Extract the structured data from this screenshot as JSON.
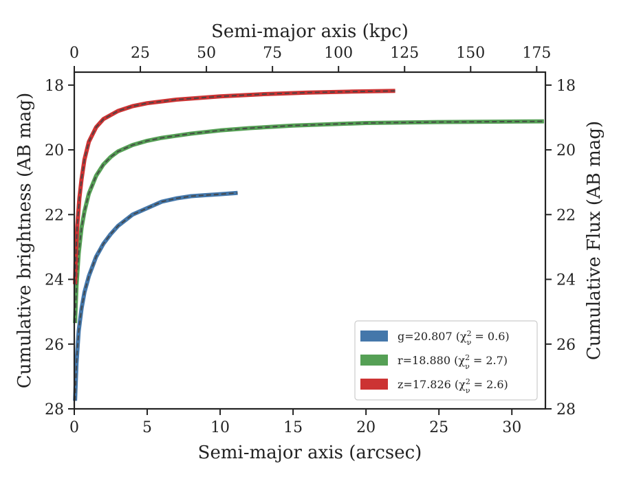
{
  "chart_data": {
    "type": "line",
    "x_top_label": "Semi-major axis (kpc)",
    "x_bottom_label": "Semi-major axis (arcsec)",
    "y_left_label": "Cumulative brightness (AB mag)",
    "y_right_label": "Cumulative Flux (AB mag)",
    "xlim": [
      0,
      32.3
    ],
    "ylim": [
      28,
      17.6
    ],
    "y_inverted": true,
    "x_bottom_ticks": [
      0,
      5,
      10,
      15,
      20,
      25,
      30
    ],
    "x_top_ticks": [
      0,
      25,
      50,
      75,
      100,
      125,
      150,
      175
    ],
    "x_top_kpc_per_arcsec": 5.52,
    "y_ticks": [
      18,
      20,
      22,
      24,
      26,
      28
    ],
    "legend_position": "lower-right",
    "series": [
      {
        "name": "g",
        "legend_text": "g=20.807 (χ",
        "legend_chi": "2",
        "legend_nu": "ν",
        "legend_value": " = 0.6)",
        "color": "#4477aa",
        "points": [
          [
            0.05,
            27.75
          ],
          [
            0.15,
            26.6
          ],
          [
            0.3,
            25.6
          ],
          [
            0.5,
            24.9
          ],
          [
            0.7,
            24.4
          ],
          [
            1.0,
            23.9
          ],
          [
            1.5,
            23.3
          ],
          [
            2.0,
            22.9
          ],
          [
            2.5,
            22.6
          ],
          [
            3.0,
            22.35
          ],
          [
            4.0,
            22.0
          ],
          [
            5.0,
            21.8
          ],
          [
            6.0,
            21.6
          ],
          [
            7.0,
            21.5
          ],
          [
            8.0,
            21.43
          ],
          [
            9.0,
            21.4
          ],
          [
            10.0,
            21.37
          ],
          [
            11.2,
            21.33
          ]
        ]
      },
      {
        "name": "r",
        "legend_text": "r=18.880 (χ",
        "legend_chi": "2",
        "legend_nu": "ν",
        "legend_value": " = 2.7)",
        "color": "#55a055",
        "points": [
          [
            0.05,
            25.35
          ],
          [
            0.15,
            24.2
          ],
          [
            0.3,
            23.2
          ],
          [
            0.5,
            22.4
          ],
          [
            0.7,
            21.9
          ],
          [
            1.0,
            21.35
          ],
          [
            1.5,
            20.8
          ],
          [
            2.0,
            20.45
          ],
          [
            2.5,
            20.22
          ],
          [
            3.0,
            20.05
          ],
          [
            4.0,
            19.85
          ],
          [
            5.0,
            19.72
          ],
          [
            6.0,
            19.63
          ],
          [
            8.0,
            19.5
          ],
          [
            10.0,
            19.4
          ],
          [
            12.0,
            19.33
          ],
          [
            15.0,
            19.25
          ],
          [
            20.0,
            19.17
          ],
          [
            25.0,
            19.14
          ],
          [
            32.2,
            19.12
          ]
        ]
      },
      {
        "name": "z",
        "legend_text": "z=17.826 (χ",
        "legend_chi": "2",
        "legend_nu": "ν",
        "legend_value": " = 2.6)",
        "color": "#cc3333",
        "points": [
          [
            0.05,
            24.15
          ],
          [
            0.1,
            23.3
          ],
          [
            0.2,
            22.4
          ],
          [
            0.35,
            21.5
          ],
          [
            0.5,
            20.9
          ],
          [
            0.7,
            20.3
          ],
          [
            1.0,
            19.75
          ],
          [
            1.5,
            19.3
          ],
          [
            2.0,
            19.05
          ],
          [
            3.0,
            18.8
          ],
          [
            4.0,
            18.65
          ],
          [
            5.0,
            18.56
          ],
          [
            7.0,
            18.45
          ],
          [
            10.0,
            18.35
          ],
          [
            13.0,
            18.28
          ],
          [
            16.0,
            18.23
          ],
          [
            19.0,
            18.2
          ],
          [
            22.0,
            18.18
          ]
        ]
      }
    ]
  }
}
